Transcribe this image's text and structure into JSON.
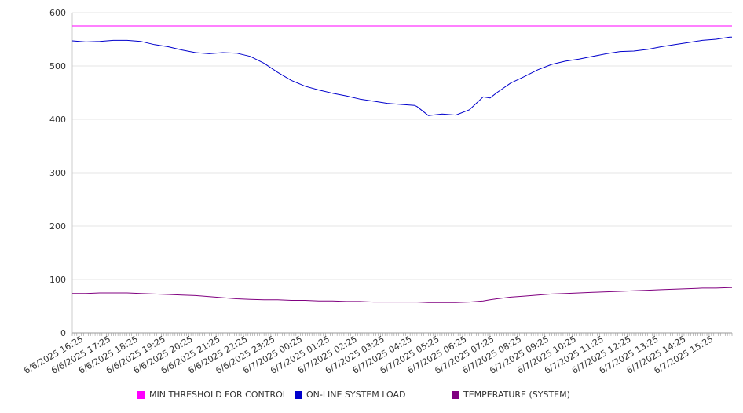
{
  "chart_data": {
    "type": "line",
    "ylim": [
      0,
      600
    ],
    "yticks": [
      0,
      100,
      200,
      300,
      400,
      500,
      600
    ],
    "xlim": [
      "6/6/2025 16:00",
      "6/7/2025 16:05"
    ],
    "grid": "horizontal",
    "legend_position": "bottom",
    "x_tick_labels": [
      "6/6/2025 16:25",
      "6/6/2025 17:25",
      "6/6/2025 18:25",
      "6/6/2025 19:25",
      "6/6/2025 20:25",
      "6/6/2025 21:25",
      "6/6/2025 22:25",
      "6/6/2025 23:25",
      "6/7/2025 00:25",
      "6/7/2025 01:25",
      "6/7/2025 02:25",
      "6/7/2025 03:25",
      "6/7/2025 04:25",
      "6/7/2025 05:25",
      "6/7/2025 06:25",
      "6/7/2025 07:25",
      "6/7/2025 08:25",
      "6/7/2025 09:25",
      "6/7/2025 10:25",
      "6/7/2025 11:25",
      "6/7/2025 12:25",
      "6/7/2025 13:25",
      "6/7/2025 14:25",
      "6/7/2025 15:25"
    ],
    "x": [
      "6/6/2025 16:00",
      "6/6/2025 16:30",
      "6/6/2025 17:00",
      "6/6/2025 17:30",
      "6/6/2025 18:00",
      "6/6/2025 18:30",
      "6/6/2025 19:00",
      "6/6/2025 19:30",
      "6/6/2025 20:00",
      "6/6/2025 20:30",
      "6/6/2025 21:00",
      "6/6/2025 21:30",
      "6/6/2025 22:00",
      "6/6/2025 22:30",
      "6/6/2025 23:00",
      "6/6/2025 23:30",
      "6/7/2025 00:00",
      "6/7/2025 00:30",
      "6/7/2025 01:00",
      "6/7/2025 01:30",
      "6/7/2025 02:00",
      "6/7/2025 02:30",
      "6/7/2025 03:00",
      "6/7/2025 03:30",
      "6/7/2025 04:00",
      "6/7/2025 04:30",
      "6/7/2025 04:35",
      "6/7/2025 05:00",
      "6/7/2025 05:30",
      "6/7/2025 06:00",
      "6/7/2025 06:30",
      "6/7/2025 07:00",
      "6/7/2025 07:15",
      "6/7/2025 07:30",
      "6/7/2025 08:00",
      "6/7/2025 08:30",
      "6/7/2025 09:00",
      "6/7/2025 09:30",
      "6/7/2025 10:00",
      "6/7/2025 10:30",
      "6/7/2025 11:00",
      "6/7/2025 11:30",
      "6/7/2025 12:00",
      "6/7/2025 12:30",
      "6/7/2025 13:00",
      "6/7/2025 13:30",
      "6/7/2025 14:00",
      "6/7/2025 14:30",
      "6/7/2025 15:00",
      "6/7/2025 15:30",
      "6/7/2025 16:00",
      "6/7/2025 16:05"
    ],
    "series": [
      {
        "name": "MIN THRESHOLD FOR CONTROL",
        "color": "#ff00ff",
        "values": [
          575,
          575,
          575,
          575,
          575,
          575,
          575,
          575,
          575,
          575,
          575,
          575,
          575,
          575,
          575,
          575,
          575,
          575,
          575,
          575,
          575,
          575,
          575,
          575,
          575,
          575,
          575,
          575,
          575,
          575,
          575,
          575,
          575,
          575,
          575,
          575,
          575,
          575,
          575,
          575,
          575,
          575,
          575,
          575,
          575,
          575,
          575,
          575,
          575,
          575,
          575,
          575
        ]
      },
      {
        "name": "ON-LINE SYSTEM LOAD",
        "color": "#0000cc",
        "values": [
          547,
          545,
          546,
          548,
          548,
          546,
          540,
          536,
          530,
          525,
          523,
          525,
          524,
          518,
          505,
          488,
          473,
          462,
          455,
          449,
          444,
          438,
          434,
          430,
          428,
          426,
          424,
          407,
          410,
          408,
          418,
          442,
          440,
          450,
          468,
          480,
          493,
          503,
          509,
          513,
          518,
          523,
          527,
          528,
          531,
          536,
          540,
          544,
          548,
          550,
          554,
          554
        ]
      },
      {
        "name": "TEMPERATURE (SYSTEM)",
        "color": "#800080",
        "values": [
          74,
          74,
          75,
          75,
          75,
          74,
          73,
          72,
          71,
          70,
          68,
          66,
          64,
          63,
          62,
          62,
          61,
          61,
          60,
          60,
          59,
          59,
          58,
          58,
          58,
          58,
          58,
          57,
          57,
          57,
          58,
          60,
          62,
          64,
          67,
          69,
          71,
          73,
          74,
          75,
          76,
          77,
          78,
          79,
          80,
          81,
          82,
          83,
          84,
          84,
          85,
          85
        ]
      }
    ]
  }
}
